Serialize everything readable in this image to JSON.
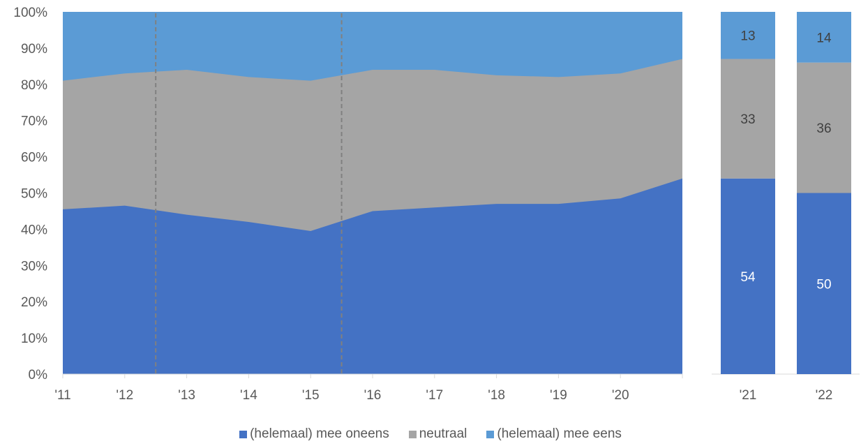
{
  "colors": {
    "oneens": "#4472C4",
    "neutraal": "#A5A5A5",
    "eens": "#5B9BD5",
    "axis_text": "#595959",
    "divider": "#808080"
  },
  "legend": [
    {
      "label": "(helemaal) mee oneens",
      "color": "#4472C4"
    },
    {
      "label": "neutraal",
      "color": "#A5A5A5"
    },
    {
      "label": "(helemaal) mee eens",
      "color": "#5B9BD5"
    }
  ],
  "chart_data": [
    {
      "type": "area",
      "stacked": true,
      "x": [
        "'11",
        "'12",
        "'13",
        "'14",
        "'15",
        "'16",
        "'17",
        "'18",
        "'19",
        "'20",
        "'21"
      ],
      "x_tick_labels": [
        "'11",
        "'12",
        "'13",
        "'14",
        "'15",
        "'16",
        "'17",
        "'18",
        "'19",
        "'20"
      ],
      "y_tick_labels": [
        "0%",
        "10%",
        "20%",
        "30%",
        "40%",
        "50%",
        "60%",
        "70%",
        "80%",
        "90%",
        "100%"
      ],
      "ylim": [
        0,
        100
      ],
      "series": [
        {
          "name": "(helemaal) mee oneens",
          "values": [
            45.5,
            46.5,
            44,
            42,
            39.5,
            45,
            46,
            47,
            47,
            48.5,
            54
          ]
        },
        {
          "name": "neutraal",
          "values": [
            35.5,
            36.5,
            40,
            40,
            41.5,
            39,
            38,
            35.5,
            35,
            34.5,
            33
          ]
        },
        {
          "name": "(helemaal) mee eens",
          "values": [
            19,
            17,
            16,
            18,
            19,
            16,
            16,
            17.5,
            18,
            17,
            13
          ]
        }
      ],
      "dashed_dividers_x": [
        1.5,
        4.5
      ]
    },
    {
      "type": "bar",
      "stacked": true,
      "categories": [
        "'21",
        "'22"
      ],
      "series": [
        {
          "name": "(helemaal) mee oneens",
          "values": [
            54,
            50
          ]
        },
        {
          "name": "neutraal",
          "values": [
            33,
            36
          ]
        },
        {
          "name": "(helemaal) mee eens",
          "values": [
            13,
            14
          ]
        }
      ],
      "data_labels": [
        [
          "54",
          "33",
          "13"
        ],
        [
          "50",
          "36",
          "14"
        ]
      ]
    }
  ]
}
